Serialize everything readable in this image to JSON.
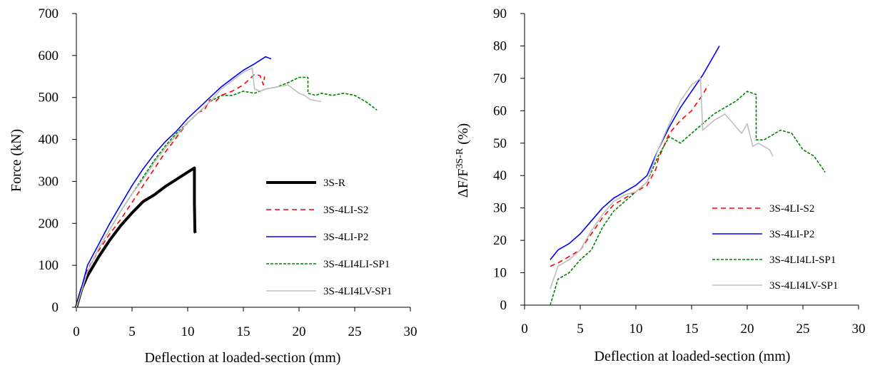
{
  "colors": {
    "3S-R": "#000000",
    "3S-4LI-S2": "#ff0000",
    "3S-4LI-P2": "#0000ff",
    "3S-4LI4LI-SP1": "#008000",
    "3S-4LI4LV-SP1": "#bfbfbf"
  },
  "chart_data": [
    {
      "type": "line",
      "title": "",
      "xlabel": "Deflection at loaded-section (mm)",
      "ylabel": "Force (kN)",
      "xlim": [
        0,
        30
      ],
      "ylim": [
        0,
        700
      ],
      "xticks": [
        0,
        5,
        10,
        15,
        20,
        25,
        30
      ],
      "yticks": [
        0,
        100,
        200,
        300,
        400,
        500,
        600,
        700
      ],
      "legend_position": "center-right",
      "series": [
        {
          "name": "3S-R",
          "style": "thick",
          "x": [
            0,
            0.5,
            1,
            2,
            3,
            4,
            5,
            6,
            7,
            8,
            9,
            10,
            10.6,
            10.6,
            10.65,
            10.7
          ],
          "y": [
            0,
            45,
            75,
            120,
            160,
            195,
            225,
            252,
            268,
            288,
            305,
            322,
            332,
            250,
            180,
            177
          ]
        },
        {
          "name": "3S-4LI-S2",
          "style": "dashed",
          "x": [
            0,
            1,
            2,
            3,
            4,
            5,
            6,
            7,
            8,
            9,
            10,
            11,
            11.5,
            12,
            12.5,
            13,
            14,
            15,
            16,
            16.5,
            16.8,
            16.9
          ],
          "y": [
            0,
            90,
            135,
            175,
            210,
            250,
            290,
            330,
            370,
            405,
            440,
            465,
            470,
            495,
            490,
            505,
            515,
            530,
            555,
            552,
            530,
            550
          ]
        },
        {
          "name": "3S-4LI-P2",
          "style": "solid",
          "x": [
            0,
            1,
            2,
            3,
            4,
            5,
            6,
            7,
            8,
            9,
            10,
            11,
            12,
            13,
            14,
            15,
            16,
            17,
            17.5
          ],
          "y": [
            0,
            100,
            150,
            200,
            245,
            290,
            330,
            365,
            395,
            420,
            450,
            475,
            500,
            525,
            545,
            565,
            580,
            597,
            592
          ]
        },
        {
          "name": "3S-4LI4LI-SP1",
          "style": "dotted",
          "x": [
            0,
            1,
            2,
            3,
            4,
            5,
            6,
            7,
            8,
            9,
            10,
            11,
            12,
            13,
            14,
            15,
            16,
            17,
            18,
            19,
            20,
            20.8,
            20.8,
            21.5,
            22,
            23,
            24,
            25,
            26,
            27
          ],
          "y": [
            0,
            85,
            140,
            185,
            230,
            270,
            310,
            350,
            385,
            415,
            440,
            465,
            490,
            505,
            505,
            515,
            510,
            520,
            525,
            535,
            548,
            548,
            510,
            505,
            510,
            505,
            510,
            505,
            490,
            470
          ]
        },
        {
          "name": "3S-4LI4LV-SP1",
          "style": "solid",
          "x": [
            0,
            1,
            2,
            3,
            4,
            5,
            6,
            7,
            8,
            9,
            10,
            11,
            12,
            13,
            14,
            15,
            15.8,
            16,
            16.5,
            17,
            18,
            19,
            20,
            20.5,
            21,
            22
          ],
          "y": [
            0,
            85,
            140,
            185,
            230,
            270,
            305,
            345,
            380,
            410,
            440,
            465,
            490,
            520,
            540,
            560,
            570,
            520,
            515,
            520,
            525,
            530,
            510,
            505,
            495,
            490
          ]
        }
      ]
    },
    {
      "type": "line",
      "title": "",
      "xlabel": "Deflection at loaded-section (mm)",
      "ylabel": "ΔF/F",
      "ylabel_superscript": "3S-R",
      "ylabel_unit": "(%)",
      "xlim": [
        0,
        30
      ],
      "ylim": [
        0,
        90
      ],
      "xticks": [
        0,
        5,
        10,
        15,
        20,
        25,
        30
      ],
      "yticks": [
        0,
        10,
        20,
        30,
        40,
        50,
        60,
        70,
        80,
        90
      ],
      "legend_position": "bottom-right",
      "series": [
        {
          "name": "3S-4LI-S2",
          "style": "dashed",
          "x": [
            2.3,
            3,
            4,
            5,
            6,
            7,
            8,
            9,
            10,
            11,
            11.8,
            12,
            13,
            14,
            15,
            16,
            16.5
          ],
          "y": [
            12,
            13,
            15,
            17,
            22,
            27,
            31,
            33,
            35,
            37,
            42,
            45,
            53,
            57,
            60,
            65,
            68
          ]
        },
        {
          "name": "3S-4LI-P2",
          "style": "solid",
          "x": [
            2.3,
            3,
            4,
            5,
            6,
            7,
            8,
            9,
            10,
            11,
            12,
            13,
            14,
            15,
            16,
            17,
            17.5
          ],
          "y": [
            14,
            17,
            19,
            22,
            26,
            30,
            33,
            35,
            37,
            40,
            48,
            55,
            61,
            66,
            71,
            77,
            80
          ]
        },
        {
          "name": "3S-4LI4LI-SP1",
          "style": "dotted",
          "x": [
            2.3,
            3,
            4,
            5,
            6,
            7,
            8,
            9,
            10,
            11,
            12,
            13,
            14,
            15,
            16,
            17,
            18,
            19,
            20,
            20.8,
            20.8,
            21.5,
            22,
            23,
            24,
            25,
            26,
            27
          ],
          "y": [
            0,
            8,
            10,
            14,
            17,
            24,
            29,
            32,
            35,
            38,
            46,
            52,
            50,
            53,
            56,
            59,
            61,
            63,
            66,
            65,
            51,
            51,
            52,
            54,
            53,
            48,
            46,
            41
          ]
        },
        {
          "name": "3S-4LI4LV-SP1",
          "style": "solid",
          "x": [
            2.3,
            3,
            4,
            5,
            6,
            7,
            8,
            9,
            10,
            11,
            12,
            13,
            14,
            15,
            15.8,
            16,
            17,
            18,
            19,
            19.5,
            20,
            20.5,
            21,
            22,
            22.3
          ],
          "y": [
            5,
            12,
            14,
            17,
            23,
            28,
            32,
            34,
            35,
            38,
            48,
            56,
            63,
            68,
            70,
            54,
            57,
            59,
            55,
            53,
            56,
            49,
            50,
            48,
            46
          ]
        }
      ]
    }
  ]
}
